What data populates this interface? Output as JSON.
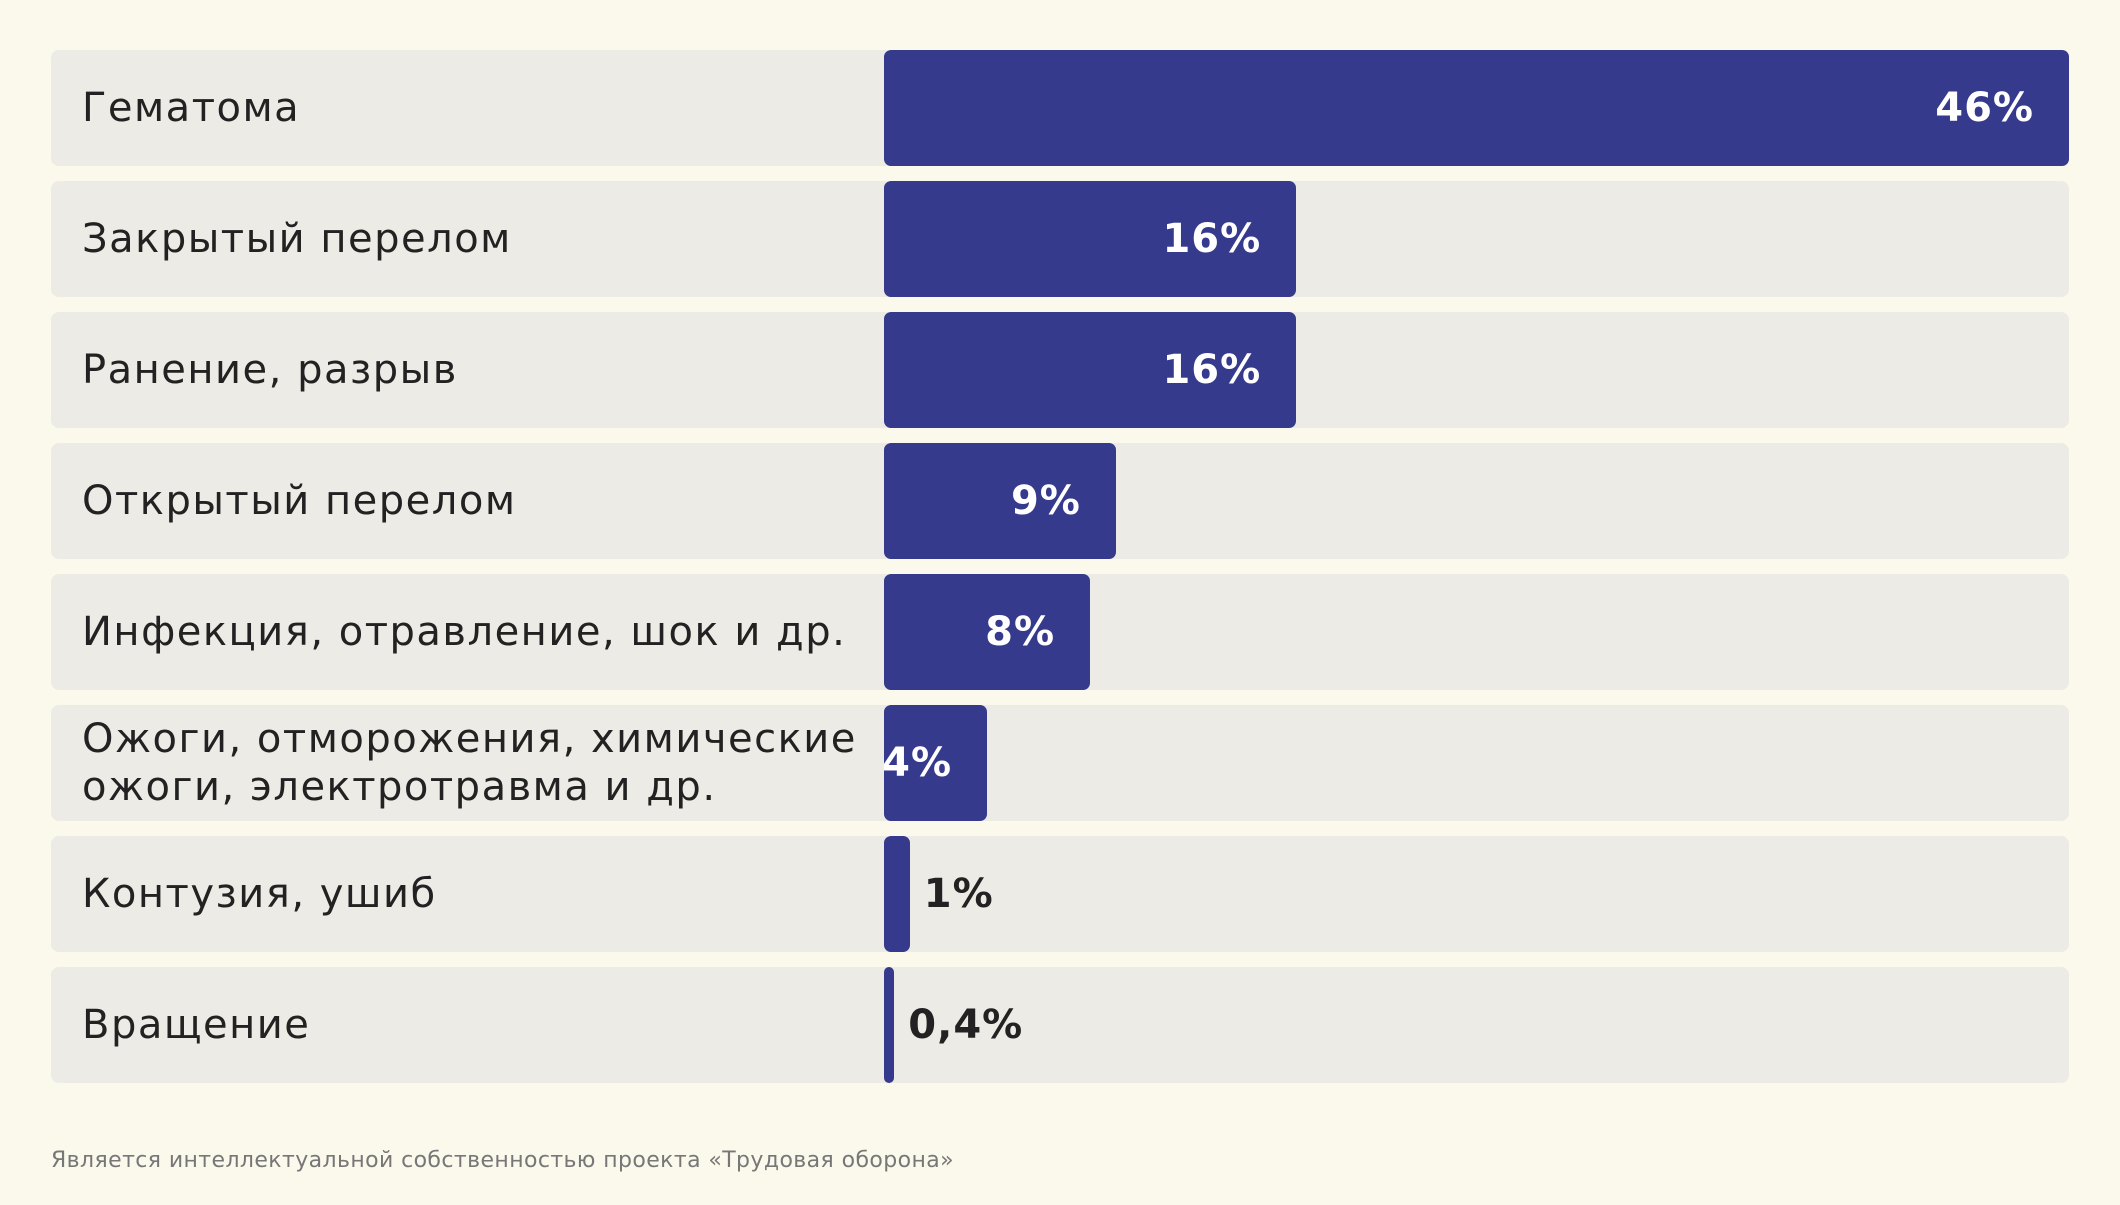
{
  "chart_data": {
    "type": "bar",
    "orientation": "horizontal",
    "categories": [
      "Гематома",
      "Закрытый перелом",
      "Ранение, разрыв",
      "Открытый перелом",
      "Инфекция, отравление, шок и др.",
      "Ожоги, отморожения, химические\nожоги, электротравма и др.",
      "Контузия, ушиб",
      "Вращение"
    ],
    "values": [
      46,
      16,
      16,
      9,
      8,
      4,
      1,
      0.4
    ],
    "value_labels": [
      "46%",
      "16%",
      "16%",
      "9%",
      "8%",
      "4%",
      "1%",
      "0,4%"
    ],
    "unit": "%",
    "title": "",
    "xlabel": "",
    "ylabel": "",
    "xlim": [
      0,
      46
    ],
    "grid": false,
    "legend": "none",
    "colors": {
      "bar": "#363a8d",
      "track": "#edebe6",
      "background": "#fbf8ec",
      "label_text": "#222222",
      "value_text_inside": "#ffffff",
      "value_text_outside": "#222222"
    }
  },
  "footnote": "Является интеллектуальной собственностью проекта «Трудовая оборона»"
}
